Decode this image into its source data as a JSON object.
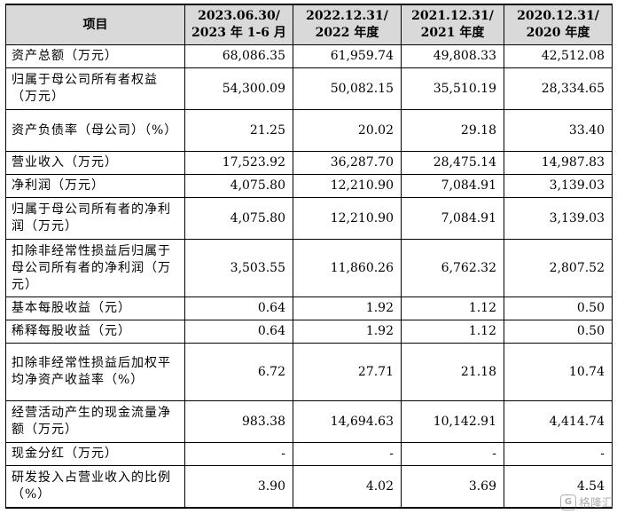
{
  "table": {
    "headers": [
      "项目",
      "2023.06.30/\n2023 年 1-6 月",
      "2022.12.31/\n2022 年度",
      "2021.12.31/\n2021 年度",
      "2020.12.31/\n2020 年度"
    ],
    "rows": [
      {
        "label": "资产总额（万元）",
        "values": [
          "68,086.35",
          "61,959.74",
          "49,808.33",
          "42,512.08"
        ]
      },
      {
        "label": "归属于母公司所有者权益（万元）",
        "values": [
          "54,300.09",
          "50,082.15",
          "35,510.19",
          "28,334.65"
        ]
      },
      {
        "label": "资产负债率（母公司）（%）",
        "values": [
          "21.25",
          "20.02",
          "29.18",
          "33.40"
        ]
      },
      {
        "label": "营业收入（万元）",
        "values": [
          "17,523.92",
          "36,287.70",
          "28,475.14",
          "14,987.83"
        ]
      },
      {
        "label": "净利润（万元）",
        "values": [
          "4,075.80",
          "12,210.90",
          "7,084.91",
          "3,139.03"
        ]
      },
      {
        "label": "归属于母公司所有者的净利润（万元）",
        "values": [
          "4,075.80",
          "12,210.90",
          "7,084.91",
          "3,139.03"
        ]
      },
      {
        "label": "扣除非经常性损益后归属于母公司所有者的净利润（万元）",
        "values": [
          "3,503.55",
          "11,860.26",
          "6,762.32",
          "2,807.52"
        ]
      },
      {
        "label": "基本每股收益（元）",
        "values": [
          "0.64",
          "1.92",
          "1.12",
          "0.50"
        ]
      },
      {
        "label": "稀释每股收益（元）",
        "values": [
          "0.64",
          "1.92",
          "1.12",
          "0.50"
        ]
      },
      {
        "label": "扣除非经常性损益后加权平均净资产收益率（%）",
        "values": [
          "6.72",
          "27.71",
          "21.18",
          "10.74"
        ]
      },
      {
        "label": "经营活动产生的现金流量净额（万元）",
        "values": [
          "983.38",
          "14,694.63",
          "10,142.91",
          "4,414.74"
        ]
      },
      {
        "label": "现金分红（万元）",
        "values": [
          "-",
          "-",
          "-",
          "-"
        ]
      },
      {
        "label": "研发投入占营业收入的比例（%）",
        "values": [
          "3.90",
          "4.02",
          "3.69",
          "4.54"
        ]
      }
    ]
  },
  "watermark": {
    "text": "格隆汇",
    "logo_glyph": "G"
  }
}
